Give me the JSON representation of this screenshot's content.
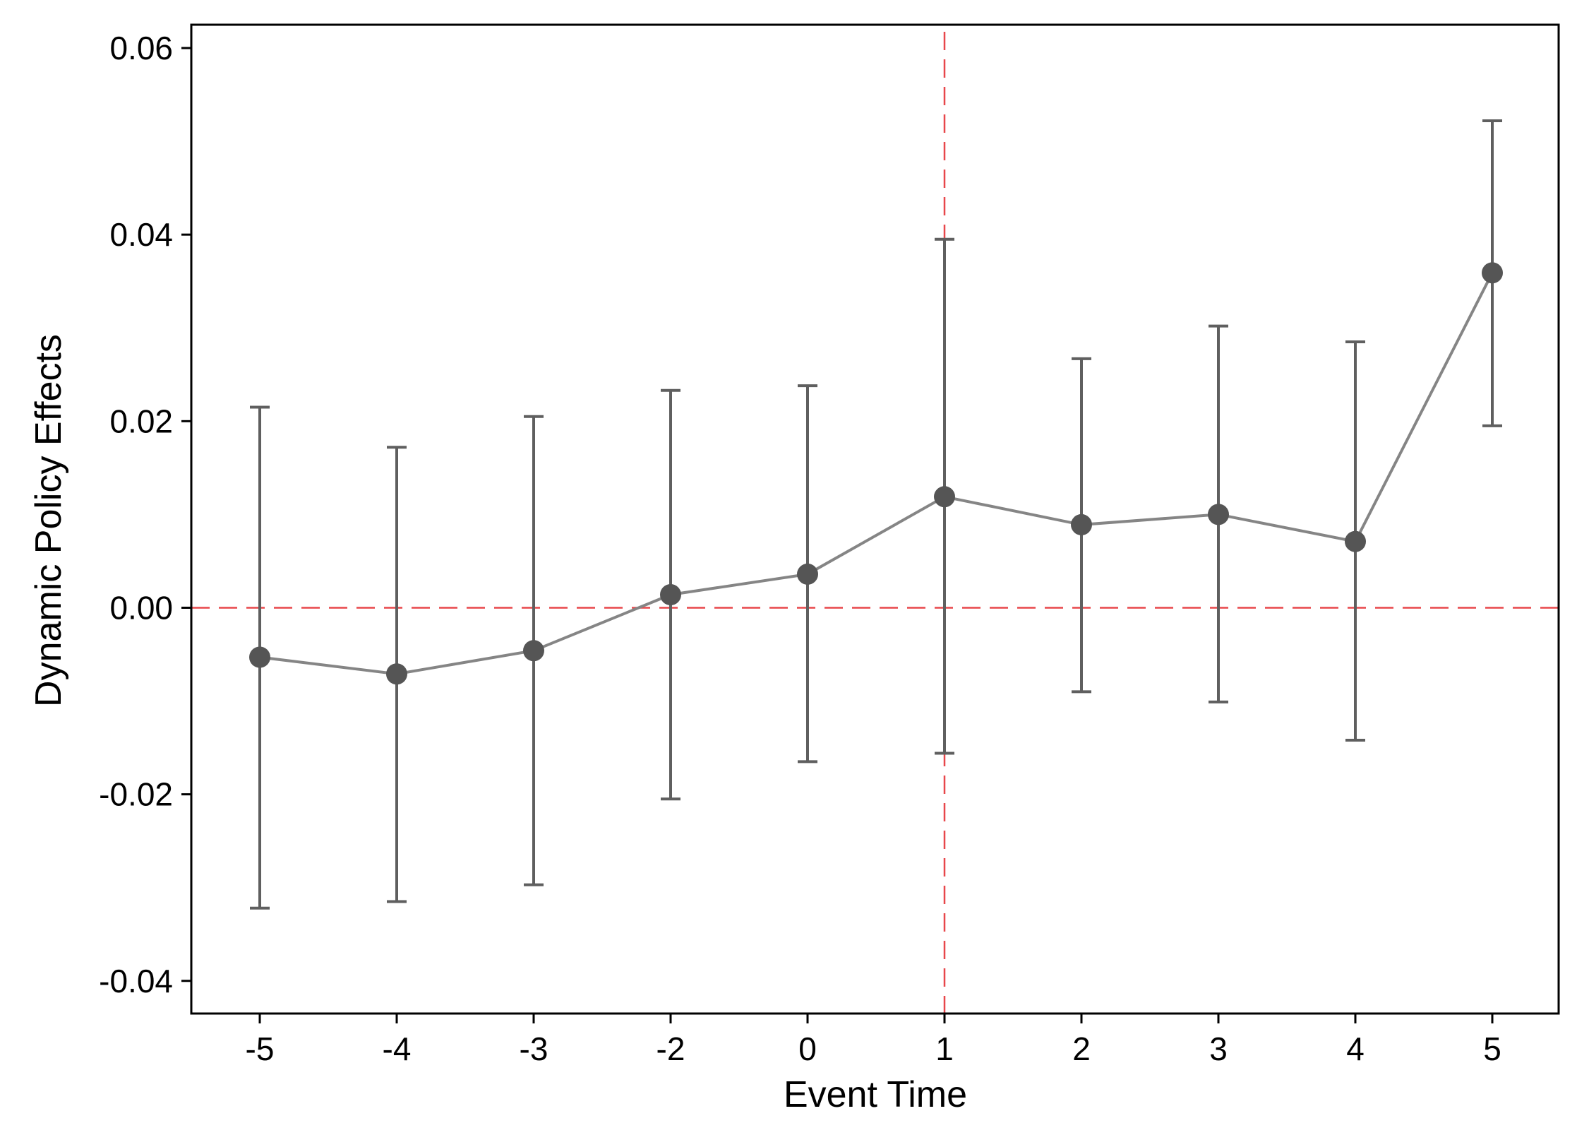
{
  "chart_data": {
    "type": "line",
    "title": "",
    "xlabel": "Event Time",
    "ylabel": "Dynamic Policy Effects",
    "categories": [
      "-5",
      "-4",
      "-3",
      "-2",
      "0",
      "1",
      "2",
      "3",
      "4",
      "5"
    ],
    "series": [
      {
        "name": "Dynamic Policy Effects",
        "values": [
          -0.0053,
          -0.0071,
          -0.0046,
          0.0014,
          0.0036,
          0.0119,
          0.0089,
          0.01,
          0.0071,
          0.0359
        ],
        "ci_lower": [
          -0.0322,
          -0.0315,
          -0.0297,
          -0.0205,
          -0.0165,
          -0.0156,
          -0.009,
          -0.0101,
          -0.0142,
          0.0195
        ],
        "ci_upper": [
          0.0215,
          0.0172,
          0.0205,
          0.0233,
          0.0238,
          0.0395,
          0.0267,
          0.0302,
          0.0285,
          0.0522
        ],
        "color": "#858585",
        "marker_color": "#555555"
      }
    ],
    "ylim": [
      -0.0435,
      0.0625
    ],
    "yticks": [
      -0.04,
      -0.02,
      0.0,
      0.02,
      0.04,
      0.06
    ],
    "ytick_labels": [
      "-0.04",
      "-0.02",
      "0.00",
      "0.02",
      "0.04",
      "0.06"
    ],
    "reference_lines": {
      "horizontal_y": 0.0,
      "vertical_at_category": "1",
      "color": "#e8474a",
      "style": "dashed"
    },
    "grid": false,
    "legend": "none"
  }
}
